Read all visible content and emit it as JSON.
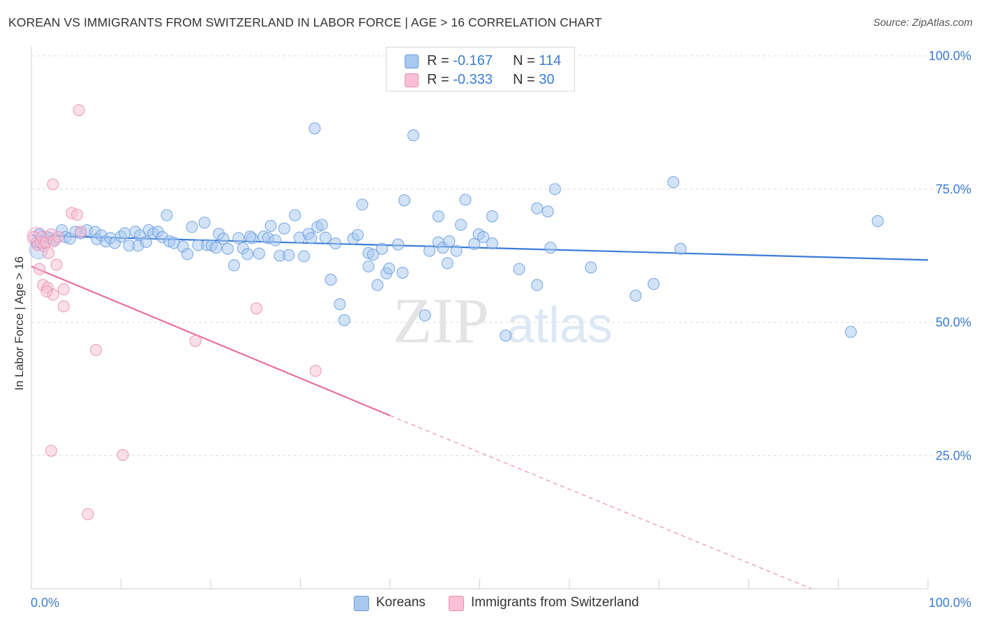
{
  "title": "KOREAN VS IMMIGRANTS FROM SWITZERLAND IN LABOR FORCE | AGE > 16 CORRELATION CHART",
  "source": "Source: ZipAtlas.com",
  "watermark": {
    "zip": "ZIP",
    "atlas": "atlas"
  },
  "legend_top": {
    "rows": [
      {
        "r_label": "R = ",
        "r_value": "-0.167",
        "n_label": "N = ",
        "n_value": "114",
        "color": "#a8c8f0",
        "stroke": "#6a9fe0"
      },
      {
        "r_label": "R = ",
        "r_value": "-0.333",
        "n_label": "N = ",
        "n_value": "30",
        "color": "#f8c0d4",
        "stroke": "#e890b0"
      }
    ]
  },
  "legend_bottom": {
    "items": [
      {
        "label": "Koreans",
        "color": "#a8c8f0",
        "stroke": "#6a9fe0"
      },
      {
        "label": "Immigrants from Switzerland",
        "color": "#f8c0d4",
        "stroke": "#e890b0"
      }
    ]
  },
  "chart_data": {
    "type": "scatter",
    "title": "KOREAN VS IMMIGRANTS FROM SWITZERLAND IN LABOR FORCE | AGE > 16 CORRELATION CHART",
    "xlabel": "",
    "ylabel": "In Labor Force | Age > 16",
    "xlim": [
      0,
      100
    ],
    "ylim": [
      0,
      100
    ],
    "x_tick_labels": [
      {
        "value": 0,
        "label": "0.0%"
      },
      {
        "value": 100,
        "label": "100.0%"
      }
    ],
    "y_tick_labels": [
      {
        "value": 100,
        "label": "100.0%"
      },
      {
        "value": 75,
        "label": "75.0%"
      },
      {
        "value": 50,
        "label": "50.0%"
      },
      {
        "value": 25,
        "label": "25.0%"
      }
    ],
    "grid": true,
    "legend_position": "top-center",
    "series": [
      {
        "name": "Koreans",
        "color": "#a8c8f0",
        "stroke": "#6a9fe0",
        "trend_color": "#3a7bd5",
        "trend": {
          "x": [
            0,
            100
          ],
          "y": [
            66.3,
            61.7
          ],
          "dashed_from": null
        },
        "points": [
          [
            0.6,
            65.0
          ],
          [
            0.9,
            66.5
          ],
          [
            1.2,
            64.8
          ],
          [
            1.5,
            65.3
          ],
          [
            1.8,
            66.0
          ],
          [
            2.1,
            65.8
          ],
          [
            2.6,
            65.5
          ],
          [
            3.4,
            67.3
          ],
          [
            3.8,
            66.0
          ],
          [
            4.3,
            65.7
          ],
          [
            4.9,
            67.0
          ],
          [
            5.5,
            66.7
          ],
          [
            6.2,
            67.3
          ],
          [
            7.1,
            67.0
          ],
          [
            7.3,
            65.6
          ],
          [
            7.8,
            66.3
          ],
          [
            8.3,
            65.2
          ],
          [
            8.8,
            65.8
          ],
          [
            9.3,
            64.9
          ],
          [
            10.0,
            66.1
          ],
          [
            10.4,
            66.7
          ],
          [
            10.9,
            64.4
          ],
          [
            11.6,
            67.0
          ],
          [
            11.9,
            64.4
          ],
          [
            12.1,
            66.3
          ],
          [
            12.8,
            65.1
          ],
          [
            13.1,
            67.3
          ],
          [
            13.6,
            66.7
          ],
          [
            14.1,
            67.0
          ],
          [
            14.6,
            66.0
          ],
          [
            15.1,
            70.1
          ],
          [
            15.4,
            65.2
          ],
          [
            15.9,
            64.9
          ],
          [
            16.9,
            64.2
          ],
          [
            17.4,
            62.8
          ],
          [
            17.9,
            67.9
          ],
          [
            18.6,
            64.5
          ],
          [
            19.3,
            68.7
          ],
          [
            19.6,
            64.5
          ],
          [
            20.1,
            64.4
          ],
          [
            20.6,
            64.0
          ],
          [
            20.9,
            66.6
          ],
          [
            21.4,
            65.7
          ],
          [
            21.9,
            63.8
          ],
          [
            22.6,
            60.7
          ],
          [
            23.1,
            65.8
          ],
          [
            23.6,
            63.9
          ],
          [
            24.1,
            62.8
          ],
          [
            24.6,
            65.8
          ],
          [
            25.4,
            62.9
          ],
          [
            25.9,
            66.1
          ],
          [
            26.4,
            65.8
          ],
          [
            26.7,
            68.1
          ],
          [
            27.2,
            65.4
          ],
          [
            27.7,
            62.5
          ],
          [
            28.2,
            67.6
          ],
          [
            28.7,
            62.6
          ],
          [
            29.4,
            70.1
          ],
          [
            29.9,
            65.9
          ],
          [
            30.4,
            62.4
          ],
          [
            30.9,
            66.6
          ],
          [
            31.9,
            67.9
          ],
          [
            32.4,
            68.3
          ],
          [
            32.8,
            65.9
          ],
          [
            33.4,
            58.0
          ],
          [
            33.9,
            64.8
          ],
          [
            34.4,
            53.4
          ],
          [
            34.9,
            50.4
          ],
          [
            35.9,
            65.7
          ],
          [
            36.4,
            66.4
          ],
          [
            36.9,
            72.1
          ],
          [
            37.6,
            63.0
          ],
          [
            38.1,
            62.7
          ],
          [
            38.6,
            57.0
          ],
          [
            39.1,
            63.8
          ],
          [
            39.6,
            59.2
          ],
          [
            39.9,
            60.1
          ],
          [
            40.9,
            64.6
          ],
          [
            41.4,
            59.3
          ],
          [
            43.9,
            51.3
          ],
          [
            44.4,
            63.4
          ],
          [
            45.4,
            65.0
          ],
          [
            45.9,
            64.0
          ],
          [
            46.4,
            61.1
          ],
          [
            47.4,
            63.4
          ],
          [
            47.9,
            68.3
          ],
          [
            49.4,
            64.7
          ],
          [
            49.9,
            66.5
          ],
          [
            50.4,
            66.0
          ],
          [
            51.4,
            64.8
          ],
          [
            52.9,
            47.5
          ],
          [
            54.4,
            60.0
          ],
          [
            56.4,
            57.0
          ],
          [
            57.9,
            64.0
          ],
          [
            62.4,
            60.3
          ],
          [
            67.4,
            55.0
          ],
          [
            69.4,
            57.2
          ],
          [
            72.4,
            63.8
          ],
          [
            91.4,
            48.2
          ],
          [
            94.4,
            69.0
          ],
          [
            31.6,
            86.4
          ],
          [
            42.6,
            85.1
          ],
          [
            71.6,
            76.3
          ],
          [
            41.6,
            72.9
          ],
          [
            45.4,
            69.9
          ],
          [
            48.4,
            73.0
          ],
          [
            51.4,
            69.9
          ],
          [
            56.4,
            71.4
          ],
          [
            57.6,
            70.8
          ],
          [
            58.4,
            75.0
          ],
          [
            37.6,
            60.5
          ],
          [
            31.2,
            65.8
          ],
          [
            46.6,
            65.2
          ],
          [
            24.4,
            66.1
          ]
        ]
      },
      {
        "name": "Immigrants from Switzerland",
        "color": "#f8c0d4",
        "stroke": "#e890b0",
        "trend_color": "#e8709a",
        "trend": {
          "x": [
            0,
            40
          ],
          "y": [
            60.5,
            32.5
          ],
          "dashed_to": [
            87,
            0
          ]
        },
        "points": [
          [
            0.3,
            66.0
          ],
          [
            0.7,
            64.5
          ],
          [
            1.0,
            65.0
          ],
          [
            1.2,
            66.0
          ],
          [
            1.4,
            64.3
          ],
          [
            1.6,
            65.0
          ],
          [
            1.9,
            63.0
          ],
          [
            2.2,
            66.5
          ],
          [
            2.5,
            65.2
          ],
          [
            3.0,
            66.0
          ],
          [
            0.9,
            60.0
          ],
          [
            1.3,
            57.0
          ],
          [
            1.8,
            56.5
          ],
          [
            2.4,
            55.2
          ],
          [
            1.7,
            55.8
          ],
          [
            2.8,
            60.8
          ],
          [
            3.6,
            56.2
          ],
          [
            3.6,
            53.0
          ],
          [
            4.5,
            70.5
          ],
          [
            5.1,
            70.2
          ],
          [
            5.5,
            67.0
          ],
          [
            2.4,
            75.9
          ],
          [
            5.3,
            89.8
          ],
          [
            7.2,
            44.8
          ],
          [
            18.3,
            46.5
          ],
          [
            25.1,
            52.6
          ],
          [
            31.7,
            40.9
          ],
          [
            2.2,
            25.9
          ],
          [
            10.2,
            25.1
          ],
          [
            6.3,
            14.0
          ]
        ]
      }
    ]
  }
}
